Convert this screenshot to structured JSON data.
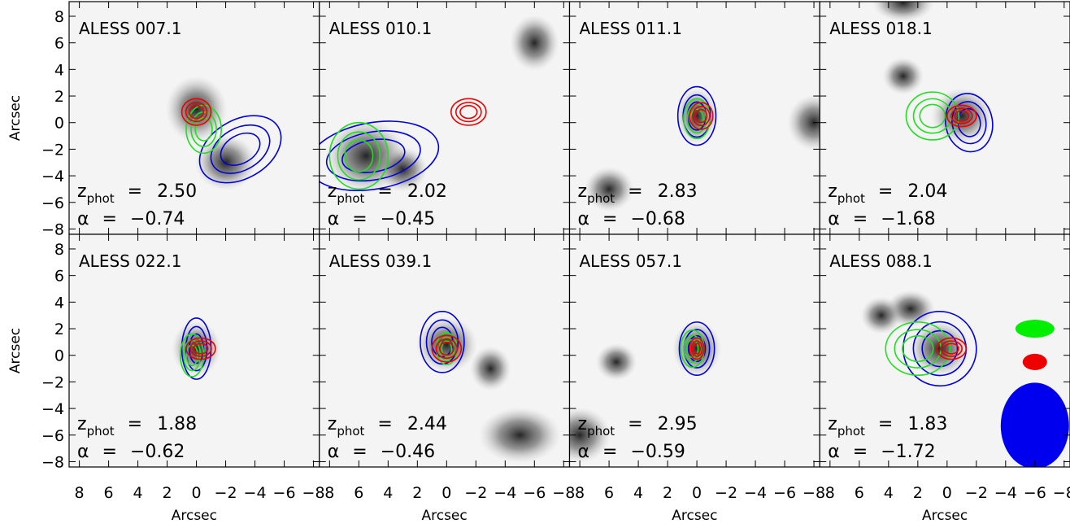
{
  "x_axis": {
    "label": "Arcsec",
    "lim": [
      8.7,
      -8.4
    ],
    "ticks": [
      8,
      6,
      4,
      2,
      0,
      {
        "value": -2,
        "label": "−2"
      },
      {
        "value": -4,
        "label": "−4"
      },
      {
        "value": -6,
        "label": "−6"
      },
      {
        "value": -8,
        "label": "−8"
      }
    ]
  },
  "y_axis": {
    "label": "Arcsec",
    "lim": [
      -8.4,
      9.1
    ],
    "ticks": [
      8,
      6,
      4,
      2,
      0,
      {
        "value": -2,
        "label": "−2"
      },
      {
        "value": -4,
        "label": "−4"
      },
      {
        "value": -6,
        "label": "−6"
      },
      {
        "value": -8,
        "label": "−8"
      }
    ]
  },
  "z_symbol": "z",
  "z_subscript": "phot",
  "equals": "=",
  "alpha_symbol": "α",
  "panels": [
    {
      "name": "ALESS 007.1",
      "z_phot": "2.50",
      "alpha": "−0.74"
    },
    {
      "name": "ALESS 010.1",
      "z_phot": "2.02",
      "alpha": "−0.45"
    },
    {
      "name": "ALESS 011.1",
      "z_phot": "2.83",
      "alpha": "−0.68"
    },
    {
      "name": "ALESS 018.1",
      "z_phot": "2.04",
      "alpha": "−1.68"
    },
    {
      "name": "ALESS 022.1",
      "z_phot": "1.88",
      "alpha": "−0.62"
    },
    {
      "name": "ALESS 039.1",
      "z_phot": "2.44",
      "alpha": "−0.46"
    },
    {
      "name": "ALESS 057.1",
      "z_phot": "2.95",
      "alpha": "−0.59"
    },
    {
      "name": "ALESS 088.1",
      "z_phot": "1.83",
      "alpha": "−1.72"
    }
  ]
}
